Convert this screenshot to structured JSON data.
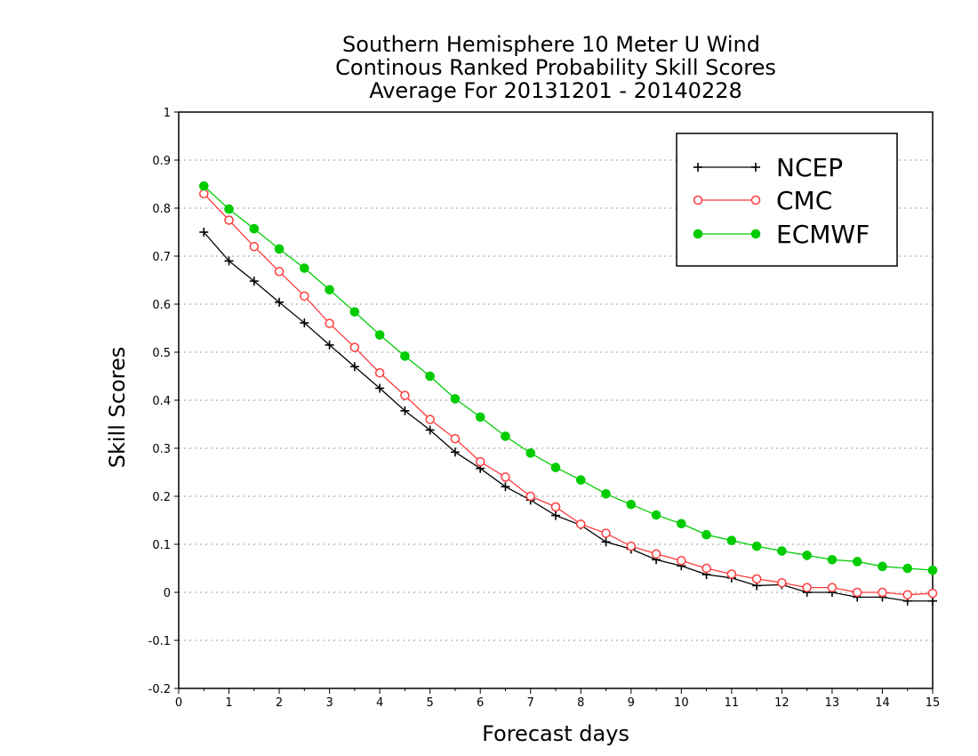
{
  "chart_data": {
    "type": "line",
    "title": [
      "Southern Hemisphere 10 Meter U Wind",
      "Continous Ranked Probability Skill Scores",
      "Average For 20131201 - 20140228"
    ],
    "xlabel": "Forecast days",
    "ylabel": "Skill Scores",
    "xlim": [
      0,
      15
    ],
    "ylim": [
      -0.2,
      1
    ],
    "xticks": [
      0,
      1,
      2,
      3,
      4,
      5,
      6,
      7,
      8,
      9,
      10,
      11,
      12,
      13,
      14,
      15
    ],
    "yticks": [
      -0.2,
      -0.1,
      0,
      0.1,
      0.2,
      0.3,
      0.4,
      0.5,
      0.6,
      0.7,
      0.8,
      0.9,
      1
    ],
    "grid": "horizontal-dotted",
    "legend_position": "top-right",
    "x": [
      0.5,
      1,
      1.5,
      2,
      2.5,
      3,
      3.5,
      4,
      4.5,
      5,
      5.5,
      6,
      6.5,
      7,
      7.5,
      8,
      8.5,
      9,
      9.5,
      10,
      10.5,
      11,
      11.5,
      12,
      12.5,
      13,
      13.5,
      14,
      14.5,
      15
    ],
    "series": [
      {
        "name": "NCEP",
        "color": "#000000",
        "marker": "plus",
        "values": [
          0.75,
          0.69,
          0.648,
          0.604,
          0.561,
          0.515,
          0.47,
          0.425,
          0.378,
          0.338,
          0.292,
          0.258,
          0.22,
          0.192,
          0.16,
          0.14,
          0.105,
          0.09,
          0.068,
          0.055,
          0.037,
          0.03,
          0.014,
          0.016,
          0.0,
          0.0,
          -0.01,
          -0.01,
          -0.018,
          -0.018
        ]
      },
      {
        "name": "CMC",
        "color": "#ff3b3b",
        "marker": "open-circle",
        "values": [
          0.83,
          0.775,
          0.72,
          0.668,
          0.617,
          0.56,
          0.51,
          0.457,
          0.41,
          0.36,
          0.32,
          0.272,
          0.24,
          0.2,
          0.178,
          0.142,
          0.123,
          0.096,
          0.08,
          0.066,
          0.05,
          0.038,
          0.028,
          0.02,
          0.01,
          0.01,
          0.0,
          0.0,
          -0.005,
          -0.002
        ]
      },
      {
        "name": "ECMWF",
        "color": "#00cc00",
        "marker": "filled-circle",
        "values": [
          0.846,
          0.798,
          0.757,
          0.715,
          0.675,
          0.63,
          0.584,
          0.536,
          0.492,
          0.45,
          0.403,
          0.365,
          0.325,
          0.29,
          0.26,
          0.234,
          0.205,
          0.183,
          0.161,
          0.143,
          0.12,
          0.108,
          0.096,
          0.086,
          0.077,
          0.068,
          0.064,
          0.054,
          0.05,
          0.046
        ]
      }
    ]
  }
}
